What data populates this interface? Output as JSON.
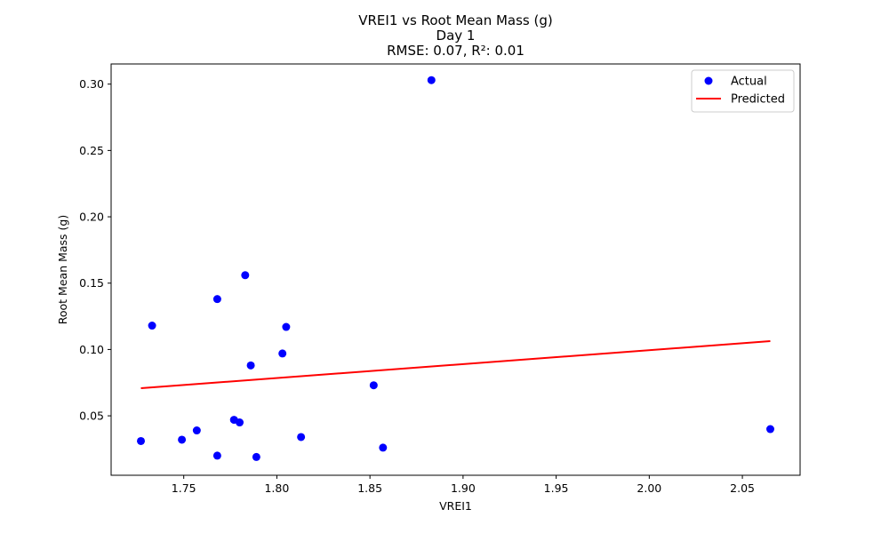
{
  "chart_data": {
    "type": "scatter",
    "title_lines": [
      "VREI1 vs Root Mean Mass (g)",
      "Day 1",
      "RMSE: 0.07, R²: 0.01"
    ],
    "xlabel": "VREI1",
    "ylabel": "Root Mean Mass (g)",
    "xlim": [
      1.711,
      2.081
    ],
    "ylim": [
      0.0052,
      0.3152
    ],
    "xticks": [
      1.75,
      1.8,
      1.85,
      1.9,
      1.95,
      2.0,
      2.05
    ],
    "xtick_labels": [
      "1.75",
      "1.80",
      "1.85",
      "1.90",
      "1.95",
      "2.00",
      "2.05"
    ],
    "yticks": [
      0.05,
      0.1,
      0.15,
      0.2,
      0.25,
      0.3
    ],
    "ytick_labels": [
      "0.05",
      "0.10",
      "0.15",
      "0.20",
      "0.25",
      "0.30"
    ],
    "grid": false,
    "legend": {
      "position": "top-right",
      "entries": [
        {
          "label": "Actual",
          "marker": "circle",
          "color": "#0000ff"
        },
        {
          "label": "Predicted",
          "marker": "line",
          "color": "#ff0000"
        }
      ]
    },
    "series": [
      {
        "name": "Actual",
        "type": "scatter",
        "color": "#0000ff",
        "points": [
          {
            "x": 1.727,
            "y": 0.031
          },
          {
            "x": 1.733,
            "y": 0.118
          },
          {
            "x": 1.749,
            "y": 0.032
          },
          {
            "x": 1.757,
            "y": 0.039
          },
          {
            "x": 1.768,
            "y": 0.02
          },
          {
            "x": 1.768,
            "y": 0.138
          },
          {
            "x": 1.777,
            "y": 0.047
          },
          {
            "x": 1.78,
            "y": 0.045
          },
          {
            "x": 1.783,
            "y": 0.156
          },
          {
            "x": 1.786,
            "y": 0.088
          },
          {
            "x": 1.789,
            "y": 0.019
          },
          {
            "x": 1.803,
            "y": 0.097
          },
          {
            "x": 1.805,
            "y": 0.117
          },
          {
            "x": 1.813,
            "y": 0.034
          },
          {
            "x": 1.852,
            "y": 0.073
          },
          {
            "x": 1.857,
            "y": 0.026
          },
          {
            "x": 1.883,
            "y": 0.303
          },
          {
            "x": 2.065,
            "y": 0.04
          }
        ]
      },
      {
        "name": "Predicted",
        "type": "line",
        "color": "#ff0000",
        "points": [
          {
            "x": 1.727,
            "y": 0.0708
          },
          {
            "x": 2.065,
            "y": 0.1063
          }
        ]
      }
    ]
  }
}
